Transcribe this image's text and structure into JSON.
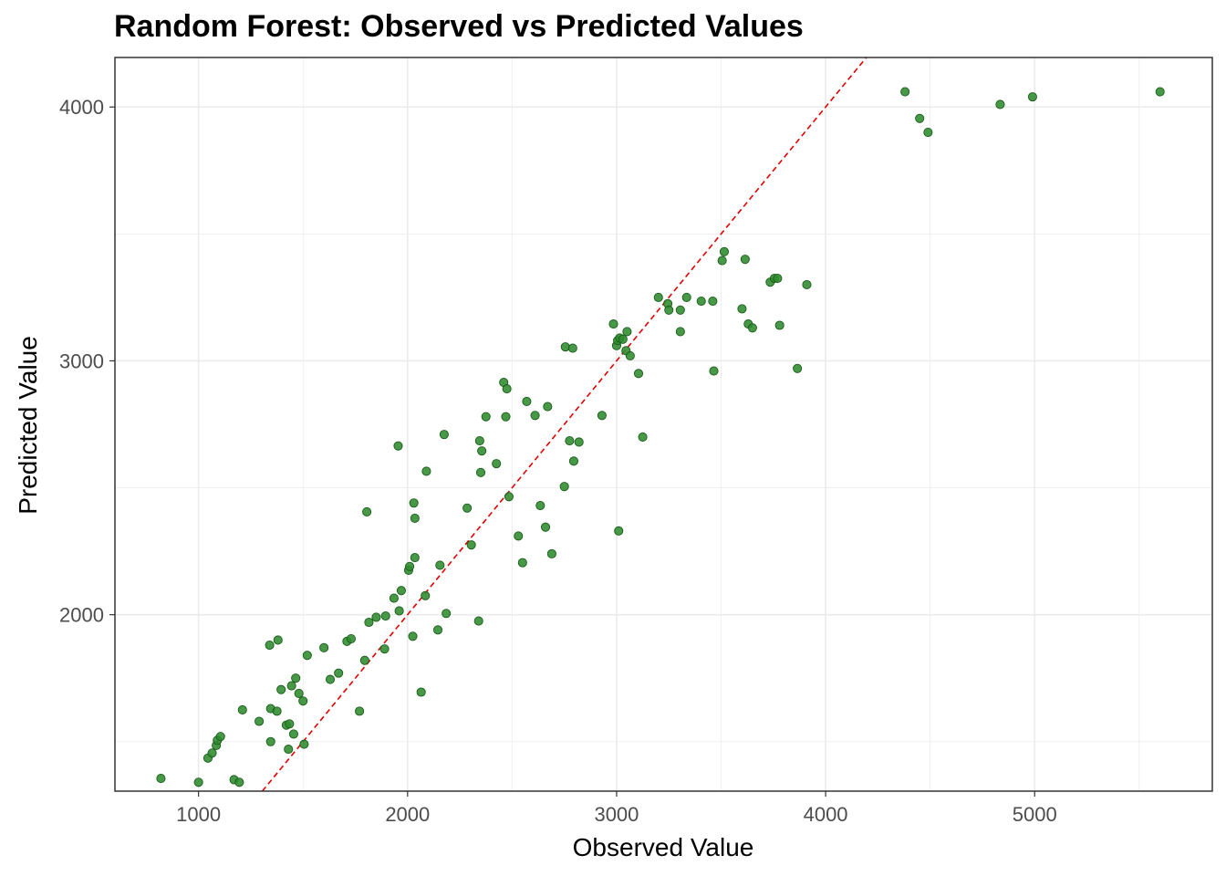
{
  "chart_data": {
    "type": "scatter",
    "title": "Random Forest: Observed vs Predicted Values",
    "xlabel": "Observed Value",
    "ylabel": "Predicted Value",
    "xlim": [
      600,
      5850
    ],
    "ylim": [
      1305,
      4195
    ],
    "x_ticks": [
      1000,
      2000,
      3000,
      4000,
      5000
    ],
    "y_ticks": [
      2000,
      3000,
      4000
    ],
    "grid": true,
    "reference_line": {
      "type": "y=x",
      "color": "#e00000",
      "style": "dashed"
    },
    "point_color": "#2e8b2e",
    "point_stroke": "#1a5c1a",
    "points": [
      [
        820,
        1355
      ],
      [
        1000,
        1340
      ],
      [
        1045,
        1435
      ],
      [
        1065,
        1455
      ],
      [
        1085,
        1485
      ],
      [
        1090,
        1505
      ],
      [
        1105,
        1520
      ],
      [
        1170,
        1350
      ],
      [
        1195,
        1340
      ],
      [
        1210,
        1625
      ],
      [
        1290,
        1580
      ],
      [
        1340,
        1880
      ],
      [
        1345,
        1500
      ],
      [
        1345,
        1630
      ],
      [
        1375,
        1620
      ],
      [
        1380,
        1900
      ],
      [
        1395,
        1705
      ],
      [
        1420,
        1565
      ],
      [
        1430,
        1470
      ],
      [
        1435,
        1570
      ],
      [
        1445,
        1720
      ],
      [
        1455,
        1530
      ],
      [
        1465,
        1750
      ],
      [
        1480,
        1690
      ],
      [
        1500,
        1660
      ],
      [
        1505,
        1490
      ],
      [
        1520,
        1840
      ],
      [
        1600,
        1870
      ],
      [
        1630,
        1745
      ],
      [
        1670,
        1770
      ],
      [
        1710,
        1895
      ],
      [
        1730,
        1905
      ],
      [
        1770,
        1620
      ],
      [
        1795,
        1820
      ],
      [
        1805,
        2405
      ],
      [
        1815,
        1970
      ],
      [
        1850,
        1990
      ],
      [
        1890,
        1865
      ],
      [
        1895,
        1995
      ],
      [
        1935,
        2065
      ],
      [
        1955,
        2665
      ],
      [
        1960,
        2015
      ],
      [
        1970,
        2095
      ],
      [
        2005,
        2175
      ],
      [
        2010,
        2190
      ],
      [
        2025,
        1915
      ],
      [
        2030,
        2440
      ],
      [
        2035,
        2225
      ],
      [
        2035,
        2380
      ],
      [
        2065,
        1695
      ],
      [
        2085,
        2075
      ],
      [
        2090,
        2565
      ],
      [
        2145,
        1940
      ],
      [
        2155,
        2195
      ],
      [
        2175,
        2710
      ],
      [
        2185,
        2005
      ],
      [
        2285,
        2420
      ],
      [
        2305,
        2275
      ],
      [
        2340,
        1975
      ],
      [
        2345,
        2685
      ],
      [
        2350,
        2560
      ],
      [
        2355,
        2645
      ],
      [
        2375,
        2780
      ],
      [
        2425,
        2595
      ],
      [
        2460,
        2915
      ],
      [
        2470,
        2780
      ],
      [
        2475,
        2890
      ],
      [
        2485,
        2465
      ],
      [
        2530,
        2310
      ],
      [
        2550,
        2205
      ],
      [
        2570,
        2840
      ],
      [
        2610,
        2785
      ],
      [
        2635,
        2430
      ],
      [
        2660,
        2345
      ],
      [
        2670,
        2820
      ],
      [
        2690,
        2240
      ],
      [
        2750,
        2505
      ],
      [
        2755,
        3055
      ],
      [
        2775,
        2685
      ],
      [
        2790,
        3050
      ],
      [
        2795,
        2605
      ],
      [
        2820,
        2680
      ],
      [
        2930,
        2785
      ],
      [
        2985,
        3145
      ],
      [
        3000,
        3060
      ],
      [
        3005,
        3080
      ],
      [
        3010,
        2330
      ],
      [
        3015,
        3090
      ],
      [
        3030,
        3085
      ],
      [
        3045,
        3040
      ],
      [
        3050,
        3115
      ],
      [
        3065,
        3020
      ],
      [
        3105,
        2950
      ],
      [
        3125,
        2700
      ],
      [
        3200,
        3250
      ],
      [
        3245,
        3225
      ],
      [
        3250,
        3200
      ],
      [
        3305,
        3200
      ],
      [
        3305,
        3115
      ],
      [
        3335,
        3250
      ],
      [
        3405,
        3235
      ],
      [
        3460,
        3235
      ],
      [
        3465,
        2960
      ],
      [
        3505,
        3395
      ],
      [
        3515,
        3430
      ],
      [
        3600,
        3205
      ],
      [
        3615,
        3400
      ],
      [
        3630,
        3145
      ],
      [
        3650,
        3130
      ],
      [
        3735,
        3310
      ],
      [
        3755,
        3325
      ],
      [
        3770,
        3325
      ],
      [
        3780,
        3140
      ],
      [
        3865,
        2970
      ],
      [
        3910,
        3300
      ],
      [
        4380,
        4060
      ],
      [
        4450,
        3955
      ],
      [
        4490,
        3900
      ],
      [
        4835,
        4010
      ],
      [
        4990,
        4040
      ],
      [
        5600,
        4060
      ]
    ]
  }
}
